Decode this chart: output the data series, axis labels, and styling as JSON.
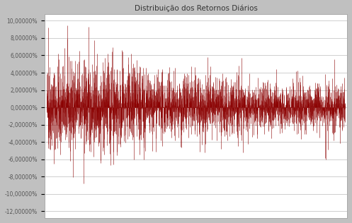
{
  "title": "Distribuição dos Retornos Diários",
  "title_fontsize": 7.5,
  "title_color": "#333333",
  "bar_color": "#8B0000",
  "bg_color": "#C0C0C0",
  "plot_bg_color": "#FFFFFF",
  "yticks": [
    0.1,
    0.08,
    0.06,
    0.04,
    0.02,
    0.0,
    -0.02,
    -0.04,
    -0.06,
    -0.08,
    -0.1,
    -0.12
  ],
  "ytick_labels": [
    "10,00000%",
    "8,00000%",
    "6,00000%",
    "4,00000%",
    "2,00000%",
    "0,00000%",
    "-2,00000%",
    "-4,00000%",
    "-6,00000%",
    "-8,00000%",
    "-10,00000%",
    "-12,00000%"
  ],
  "ylim": [
    -0.128,
    0.108
  ],
  "n_points": 3000,
  "seed": 42,
  "line_width": 0.4,
  "grid_color": "#C8C8C8",
  "grid_linewidth": 0.6,
  "spine_color": "#AAAAAA",
  "tick_fontsize": 5.5,
  "tick_color": "#555555"
}
